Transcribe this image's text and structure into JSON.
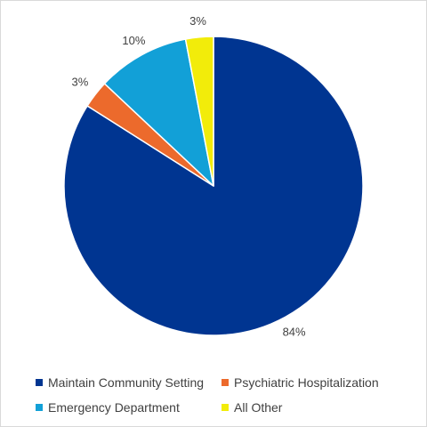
{
  "chart_data": {
    "type": "pie",
    "title": "",
    "start_angle_deg": 0,
    "direction": "clockwise",
    "slices": [
      {
        "label": "Maintain Community Setting",
        "value": 84,
        "display": "84%",
        "color": "#003591"
      },
      {
        "label": "Psychiatric Hospitalization",
        "value": 3,
        "display": "3%",
        "color": "#ec6a2c"
      },
      {
        "label": "Emergency Department",
        "value": 10,
        "display": "10%",
        "color": "#12a0d7"
      },
      {
        "label": "All Other",
        "value": 3,
        "display": "3%",
        "color": "#f2ec0a"
      }
    ],
    "legend_position": "bottom"
  }
}
